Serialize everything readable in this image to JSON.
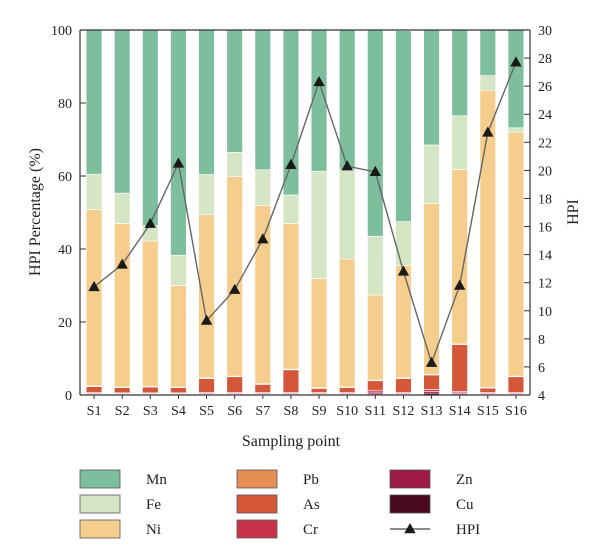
{
  "chart_data": {
    "type": "bar",
    "stacked": true,
    "xlabel": "Sampling point",
    "ylabel": "HPI Percentage (%)",
    "y2label": "HPI",
    "ylim": [
      0,
      100
    ],
    "y2lim": [
      4,
      30
    ],
    "yticks": [
      0,
      20,
      40,
      60,
      80,
      100
    ],
    "y2ticks": [
      4,
      6,
      8,
      10,
      12,
      14,
      16,
      18,
      20,
      22,
      24,
      26,
      28,
      30
    ],
    "categories": [
      "S1",
      "S2",
      "S3",
      "S4",
      "S5",
      "S6",
      "S7",
      "S8",
      "S9",
      "S10",
      "S11",
      "S12",
      "S13",
      "S14",
      "S15",
      "S16"
    ],
    "series": [
      {
        "name": "Cu",
        "color": "#4a0a1e",
        "values": [
          0.2,
          0.2,
          0.2,
          0.2,
          0.2,
          0.2,
          0.2,
          0.2,
          0.2,
          0.2,
          0.3,
          0.2,
          0.5,
          0.3,
          0.2,
          0.2
        ]
      },
      {
        "name": "Zn",
        "color": "#9c1a45",
        "values": [
          0.2,
          0.2,
          0.2,
          0.2,
          0.2,
          0.2,
          0.2,
          0.2,
          0.2,
          0.2,
          0.5,
          0.2,
          0.5,
          0.3,
          0.2,
          0.2
        ]
      },
      {
        "name": "Cr",
        "color": "#c8324a",
        "values": [
          0.3,
          0.2,
          0.2,
          0.2,
          0.3,
          0.3,
          0.3,
          0.3,
          0.3,
          0.3,
          0.5,
          0.3,
          0.5,
          0.4,
          0.3,
          0.3
        ]
      },
      {
        "name": "As",
        "color": "#d4573a",
        "values": [
          1.6,
          1.4,
          1.6,
          1.4,
          3.8,
          4.3,
          2.2,
          6.2,
          1.1,
          1.3,
          2.6,
          3.8,
          4.0,
          12.8,
          1.2,
          4.3
        ]
      },
      {
        "name": "Pb",
        "color": "#e68f55",
        "values": [
          0.2,
          0.2,
          0.2,
          0.2,
          0.2,
          0.2,
          0.2,
          0.2,
          0.2,
          0.2,
          0.2,
          0.2,
          0.2,
          0.2,
          0.2,
          0.2
        ]
      },
      {
        "name": "Ni",
        "color": "#f5cd8c",
        "values": [
          48.3,
          44.8,
          39.8,
          27.8,
          44.7,
          54.7,
          48.8,
          39.9,
          29.9,
          35.0,
          23.3,
          30.8,
          46.8,
          47.8,
          81.4,
          66.8
        ]
      },
      {
        "name": "Fe",
        "color": "#d5e6c4",
        "values": [
          9.7,
          8.3,
          4.2,
          8.3,
          11.0,
          6.6,
          9.8,
          7.8,
          29.4,
          24.5,
          16.1,
          12.0,
          16.0,
          14.7,
          4.0,
          1.2
        ]
      },
      {
        "name": "Mn",
        "color": "#7dbf9c",
        "values": [
          39.5,
          44.7,
          53.6,
          61.7,
          39.6,
          33.5,
          38.5,
          45.2,
          38.7,
          38.3,
          56.5,
          52.3,
          31.5,
          23.5,
          12.5,
          26.8
        ]
      }
    ],
    "line": {
      "name": "HPI",
      "color": "#666666",
      "values": [
        11.7,
        13.3,
        16.2,
        20.5,
        9.3,
        11.5,
        15.1,
        20.4,
        26.3,
        20.3,
        19.9,
        12.8,
        6.3,
        11.8,
        22.7,
        27.7
      ]
    },
    "legend_order": [
      "Mn",
      "Pb",
      "Zn",
      "Fe",
      "As",
      "Cu",
      "Ni",
      "Cr",
      "HPI"
    ],
    "legend_position": "bottom"
  }
}
